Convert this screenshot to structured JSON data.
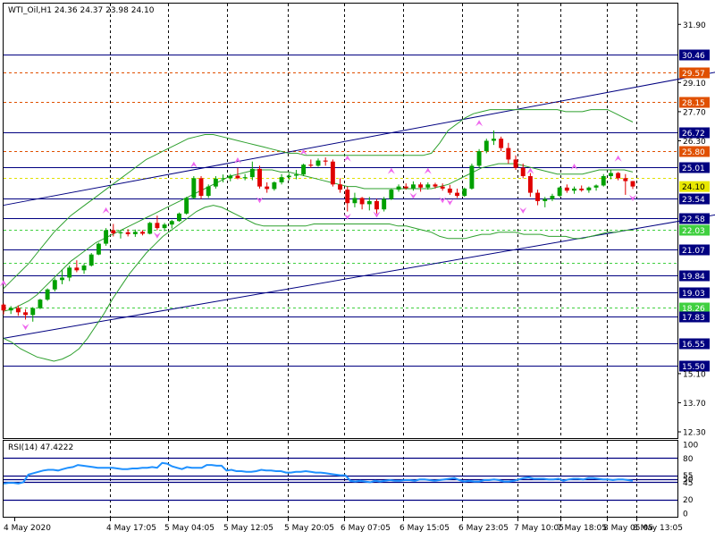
{
  "chart_data": [
    {
      "type": "candlestick",
      "title": "WTI_Oil,H1  24.36 24.37 23.98 24.10",
      "symbol": "WTI_Oil,H1",
      "ohlc": [
        24.36,
        24.37,
        23.98,
        24.1
      ],
      "ylim": [
        12.0,
        32.9
      ],
      "y_ticks": [
        "31.90",
        "29.10",
        "27.70",
        "26.30",
        "25.01",
        "24.10",
        "23.54",
        "22.58",
        "21.07",
        "19.84",
        "19.03",
        "17.83",
        "16.55",
        "15.50",
        "15.10",
        "13.70",
        "12.30"
      ],
      "x_ticks": [
        "4 May 2020",
        "4 May 17:05",
        "5 May 04:05",
        "5 May 12:05",
        "5 May 20:05",
        "6 May 07:05",
        "6 May 15:05",
        "6 May 23:05",
        "7 May 10:05",
        "7 May 18:05",
        "8 May 05:05",
        "8 May 13:05"
      ],
      "grid": "vertical dashed",
      "horizontal_levels": [
        {
          "value": 30.46,
          "label": "30.46",
          "color": "#000080",
          "style": "solid"
        },
        {
          "value": 29.57,
          "label": "29.57",
          "color": "#e05000",
          "style": "dashed"
        },
        {
          "value": 28.15,
          "label": "28.15",
          "color": "#e05000",
          "style": "dashed"
        },
        {
          "value": 26.72,
          "label": "26.72",
          "color": "#000080",
          "style": "solid"
        },
        {
          "value": 25.8,
          "label": "25.80",
          "color": "#e05000",
          "style": "dashed"
        },
        {
          "value": 25.01,
          "label": "25.01",
          "color": "#000080",
          "style": "solid"
        },
        {
          "value": 24.52,
          "label": "",
          "color": "#e0e000",
          "style": "dashed"
        },
        {
          "value": 23.54,
          "label": "23.54",
          "color": "#000080",
          "style": "solid"
        },
        {
          "value": 22.58,
          "label": "22.58",
          "color": "#000080",
          "style": "solid"
        },
        {
          "value": 22.03,
          "label": "22.03",
          "color": "#40d040",
          "style": "dashed"
        },
        {
          "value": 21.07,
          "label": "21.07",
          "color": "#000080",
          "style": "solid"
        },
        {
          "value": 20.42,
          "label": "",
          "color": "#40d040",
          "style": "dashed"
        },
        {
          "value": 19.84,
          "label": "19.84",
          "color": "#000080",
          "style": "solid"
        },
        {
          "value": 19.03,
          "label": "19.03",
          "color": "#000080",
          "style": "solid"
        },
        {
          "value": 18.26,
          "label": "18.26",
          "color": "#40d040",
          "style": "dashed"
        },
        {
          "value": 17.83,
          "label": "17.83",
          "color": "#000080",
          "style": "solid"
        },
        {
          "value": 16.55,
          "label": "16.55",
          "color": "#000080",
          "style": "solid"
        },
        {
          "value": 15.5,
          "label": "15.50",
          "color": "#000080",
          "style": "solid"
        }
      ],
      "trend_channel": [
        {
          "from": [
            0,
            23.2
          ],
          "to": [
            127,
            31.55
          ]
        },
        {
          "from": [
            0,
            16.8
          ],
          "to": [
            127,
            24.55
          ]
        }
      ],
      "bollinger_mid": [
        18.1,
        18.2,
        18.4,
        18.6,
        18.9,
        19.3,
        19.7,
        20.1,
        20.5,
        20.8,
        21.1,
        21.4,
        21.6,
        21.8,
        22.0,
        22.2,
        22.4,
        22.6,
        22.8,
        23.0,
        23.2,
        23.4,
        23.6,
        23.8,
        24.0,
        24.2,
        24.4,
        24.6,
        24.7,
        24.8,
        24.9,
        24.9,
        24.9,
        24.8,
        24.8,
        24.7,
        24.6,
        24.5,
        24.4,
        24.3,
        24.2,
        24.1,
        24.1,
        24.0,
        24.0,
        24.0,
        24.0,
        24.0,
        24.0,
        24.0,
        24.0,
        24.0,
        24.1,
        24.2,
        24.4,
        24.6,
        24.8,
        25.0,
        25.1,
        25.2,
        25.2,
        25.2,
        25.1,
        25.0,
        24.9,
        24.8,
        24.7,
        24.7,
        24.7,
        24.7,
        24.8,
        24.9,
        24.9,
        24.9,
        24.9,
        24.8
      ],
      "bollinger_upper": [
        19.2,
        19.6,
        20.0,
        20.4,
        20.9,
        21.4,
        21.9,
        22.3,
        22.7,
        23.0,
        23.3,
        23.6,
        23.9,
        24.2,
        24.5,
        24.8,
        25.1,
        25.4,
        25.6,
        25.8,
        26.0,
        26.2,
        26.4,
        26.5,
        26.6,
        26.6,
        26.5,
        26.4,
        26.3,
        26.2,
        26.1,
        26.0,
        25.9,
        25.8,
        25.7,
        25.7,
        25.6,
        25.6,
        25.6,
        25.6,
        25.6,
        25.6,
        25.6,
        25.6,
        25.6,
        25.6,
        25.6,
        25.6,
        25.6,
        25.6,
        25.6,
        25.7,
        26.2,
        26.8,
        27.1,
        27.4,
        27.6,
        27.7,
        27.8,
        27.8,
        27.8,
        27.8,
        27.8,
        27.8,
        27.8,
        27.8,
        27.8,
        27.7,
        27.7,
        27.7,
        27.8,
        27.8,
        27.8,
        27.6,
        27.4,
        27.2
      ],
      "bollinger_lower": [
        16.8,
        16.6,
        16.3,
        16.1,
        15.9,
        15.8,
        15.7,
        15.8,
        16.0,
        16.3,
        16.8,
        17.4,
        18.0,
        18.7,
        19.3,
        19.9,
        20.4,
        20.9,
        21.3,
        21.7,
        22.0,
        22.3,
        22.6,
        22.9,
        23.1,
        23.2,
        23.1,
        22.9,
        22.7,
        22.5,
        22.3,
        22.2,
        22.2,
        22.2,
        22.2,
        22.2,
        22.2,
        22.3,
        22.3,
        22.3,
        22.3,
        22.3,
        22.3,
        22.3,
        22.3,
        22.3,
        22.3,
        22.2,
        22.2,
        22.1,
        22.0,
        21.9,
        21.7,
        21.6,
        21.6,
        21.6,
        21.7,
        21.8,
        21.8,
        21.9,
        21.9,
        21.9,
        21.8,
        21.8,
        21.8,
        21.7,
        21.7,
        21.7,
        21.6,
        21.6,
        21.7,
        21.8,
        21.9,
        21.9,
        22.0,
        22.0
      ],
      "candles": [
        [
          18.42,
          18.48,
          17.95,
          18.14
        ],
        [
          18.14,
          18.35,
          17.97,
          18.26
        ],
        [
          18.26,
          18.38,
          17.88,
          18.05
        ],
        [
          18.05,
          18.2,
          17.7,
          17.92
        ],
        [
          17.92,
          18.3,
          17.6,
          18.25
        ],
        [
          18.25,
          18.7,
          18.2,
          18.66
        ],
        [
          18.66,
          19.2,
          18.6,
          19.15
        ],
        [
          19.15,
          19.68,
          19.05,
          19.6
        ],
        [
          19.6,
          20.1,
          19.4,
          19.72
        ],
        [
          19.72,
          20.3,
          19.55,
          20.2
        ],
        [
          20.2,
          20.55,
          19.98,
          20.07
        ],
        [
          20.07,
          20.4,
          19.9,
          20.3
        ],
        [
          20.3,
          20.9,
          20.25,
          20.83
        ],
        [
          20.83,
          21.4,
          20.8,
          21.35
        ],
        [
          21.35,
          22.1,
          21.25,
          22.0
        ],
        [
          22.0,
          22.3,
          21.7,
          21.85
        ],
        [
          21.85,
          22.0,
          21.6,
          21.9
        ],
        [
          21.9,
          22.05,
          21.7,
          21.81
        ],
        [
          21.81,
          22.03,
          21.68,
          21.92
        ],
        [
          21.92,
          22.0,
          21.75,
          21.83
        ],
        [
          21.83,
          22.4,
          21.8,
          22.35
        ],
        [
          22.35,
          22.7,
          22.0,
          22.1
        ],
        [
          22.1,
          22.35,
          21.95,
          22.27
        ],
        [
          22.27,
          22.5,
          22.08,
          22.44
        ],
        [
          22.44,
          22.85,
          22.4,
          22.8
        ],
        [
          22.8,
          23.6,
          22.75,
          23.55
        ],
        [
          23.55,
          24.6,
          23.5,
          24.5
        ],
        [
          24.5,
          24.6,
          23.5,
          23.65
        ],
        [
          23.65,
          24.2,
          23.55,
          24.1
        ],
        [
          24.1,
          24.6,
          24.0,
          24.48
        ],
        [
          24.48,
          24.68,
          24.3,
          24.5
        ],
        [
          24.5,
          24.7,
          24.35,
          24.62
        ],
        [
          24.62,
          25.0,
          24.45,
          24.5
        ],
        [
          24.5,
          24.7,
          24.4,
          24.55
        ],
        [
          24.55,
          25.3,
          24.4,
          24.95
        ],
        [
          24.95,
          25.1,
          24.0,
          24.1
        ],
        [
          24.1,
          24.3,
          23.8,
          23.98
        ],
        [
          23.98,
          24.35,
          23.9,
          24.3
        ],
        [
          24.3,
          24.7,
          24.2,
          24.55
        ],
        [
          24.55,
          24.75,
          24.4,
          24.62
        ],
        [
          24.62,
          24.9,
          24.45,
          24.68
        ],
        [
          24.68,
          25.2,
          24.6,
          25.15
        ],
        [
          25.15,
          25.4,
          25.0,
          25.1
        ],
        [
          25.1,
          25.45,
          25.05,
          25.35
        ],
        [
          25.35,
          25.5,
          25.1,
          25.3
        ],
        [
          25.3,
          25.4,
          24.1,
          24.2
        ],
        [
          24.2,
          24.5,
          23.8,
          23.95
        ],
        [
          23.95,
          24.1,
          22.9,
          23.3
        ],
        [
          23.3,
          23.8,
          23.1,
          23.55
        ],
        [
          23.55,
          23.6,
          23.0,
          23.25
        ],
        [
          23.25,
          23.6,
          22.95,
          23.4
        ],
        [
          23.4,
          23.5,
          22.8,
          23.0
        ],
        [
          23.0,
          23.6,
          22.9,
          23.5
        ],
        [
          23.5,
          24.0,
          23.45,
          23.95
        ],
        [
          23.95,
          24.2,
          23.85,
          24.1
        ],
        [
          24.1,
          24.25,
          23.95,
          24.02
        ],
        [
          24.02,
          24.35,
          23.9,
          24.2
        ],
        [
          24.2,
          24.3,
          23.85,
          24.05
        ],
        [
          24.05,
          24.3,
          23.95,
          24.2
        ],
        [
          24.2,
          24.28,
          24.0,
          24.1
        ],
        [
          24.1,
          24.25,
          23.9,
          24.0
        ],
        [
          24.0,
          24.18,
          23.7,
          23.8
        ],
        [
          23.8,
          24.0,
          23.55,
          23.65
        ],
        [
          23.65,
          24.05,
          23.6,
          24.0
        ],
        [
          24.0,
          25.2,
          23.95,
          25.1
        ],
        [
          25.1,
          25.9,
          25.0,
          25.8
        ],
        [
          25.8,
          26.4,
          25.7,
          26.3
        ],
        [
          26.3,
          26.8,
          26.1,
          26.4
        ],
        [
          26.4,
          26.5,
          25.8,
          25.95
        ],
        [
          25.95,
          26.2,
          25.2,
          25.4
        ],
        [
          25.4,
          25.6,
          24.9,
          25.0
        ],
        [
          25.0,
          25.2,
          24.5,
          24.6
        ],
        [
          24.6,
          24.75,
          23.6,
          23.8
        ],
        [
          23.8,
          23.95,
          23.2,
          23.4
        ],
        [
          23.4,
          23.6,
          23.1,
          23.5
        ],
        [
          23.5,
          23.75,
          23.4,
          23.65
        ],
        [
          23.65,
          24.1,
          23.6,
          24.05
        ],
        [
          24.05,
          24.2,
          23.8,
          23.9
        ],
        [
          23.9,
          24.1,
          23.75,
          24.0
        ],
        [
          24.0,
          24.15,
          23.85,
          23.92
        ],
        [
          23.92,
          24.1,
          23.8,
          24.05
        ],
        [
          24.05,
          24.2,
          23.9,
          24.15
        ],
        [
          24.15,
          24.7,
          24.1,
          24.6
        ],
        [
          24.6,
          24.9,
          24.45,
          24.75
        ],
        [
          24.75,
          24.8,
          24.4,
          24.5
        ],
        [
          24.5,
          24.7,
          23.7,
          24.36
        ],
        [
          24.36,
          24.37,
          23.98,
          24.1
        ]
      ],
      "fractals_up": [
        [
          0,
          19.3
        ],
        [
          14,
          22.8
        ],
        [
          26,
          25.0
        ],
        [
          32,
          25.2
        ],
        [
          41,
          25.6
        ],
        [
          47,
          25.3
        ],
        [
          53,
          24.7
        ],
        [
          58,
          24.7
        ],
        [
          65,
          27.0
        ],
        [
          72,
          24.7
        ],
        [
          78,
          24.9
        ],
        [
          84,
          25.3
        ]
      ],
      "fractals_down": [
        [
          3,
          17.5
        ],
        [
          21,
          21.9
        ],
        [
          35,
          23.6
        ],
        [
          47,
          22.8
        ],
        [
          51,
          22.9
        ],
        [
          56,
          23.8
        ],
        [
          60,
          23.6
        ],
        [
          61,
          23.5
        ],
        [
          71,
          23.1
        ],
        [
          86,
          23.7
        ]
      ]
    },
    {
      "type": "line",
      "title": "RSI(14) 47.4222",
      "indicator": "RSI(14)",
      "current_value": 47.4222,
      "ylim": [
        0,
        100
      ],
      "y_ticks": [
        "100",
        "80",
        "55",
        "50",
        "45",
        "20",
        "0"
      ],
      "levels": [
        80,
        55,
        50,
        45,
        20
      ],
      "values": [
        43,
        44,
        44,
        43,
        45,
        56,
        58,
        60,
        62,
        63,
        63,
        62,
        64,
        66,
        67,
        70,
        69,
        68,
        67,
        66,
        66,
        66,
        66,
        65,
        64,
        64,
        65,
        65,
        66,
        66,
        67,
        66,
        73,
        72,
        68,
        66,
        64,
        67,
        66,
        66,
        66,
        70,
        70,
        69,
        69,
        62,
        63,
        61,
        61,
        60,
        60,
        61,
        63,
        62,
        62,
        61,
        61,
        59,
        59,
        60,
        60,
        61,
        60,
        59,
        59,
        58,
        57,
        56,
        55,
        55,
        47,
        46,
        47,
        46,
        45,
        47,
        46,
        47,
        48,
        47,
        47,
        48,
        48,
        47,
        49,
        49,
        48,
        47,
        48,
        49,
        50,
        51,
        48,
        46,
        47,
        46,
        46,
        48,
        48,
        49,
        48,
        46,
        46,
        47,
        49,
        51,
        52,
        50,
        50,
        50,
        49,
        49,
        50,
        47,
        49,
        50,
        50,
        49,
        51,
        51,
        50,
        49,
        49,
        48,
        49,
        49,
        48,
        47
      ]
    }
  ]
}
